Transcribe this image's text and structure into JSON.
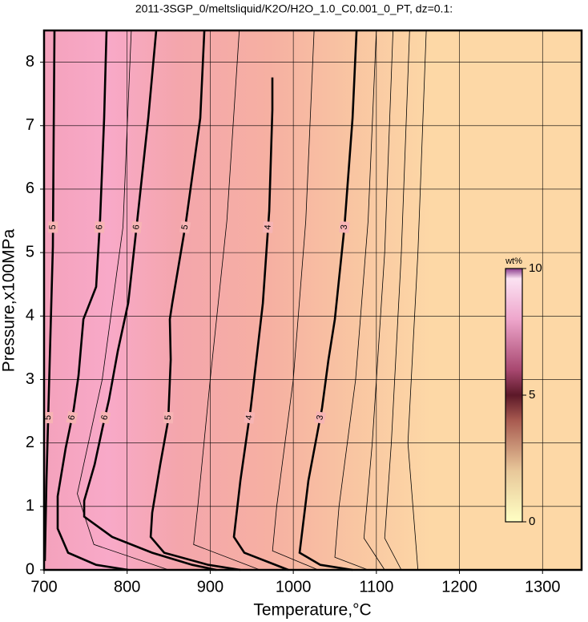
{
  "chart_data": {
    "type": "contour",
    "title": "2011-3SGP_0/meltsliquid/K2O/H2O_1.0_C0.001_0_PT, dz=0.1:",
    "x_label": "Temperature,°C",
    "y_label": "Pressure,x100MPa",
    "xlim": [
      700,
      1347
    ],
    "ylim": [
      0,
      8.5
    ],
    "xticks": [
      700,
      800,
      900,
      1000,
      1100,
      1200,
      1300
    ],
    "yticks": [
      0,
      1,
      2,
      3,
      4,
      5,
      6,
      7,
      8
    ],
    "grid": true,
    "line_color": "#000000",
    "contours": [
      {
        "level": 6,
        "labeled": true,
        "x": [
          775.2,
          772.3,
          767.5,
          762.7,
          747.3,
          741.5,
          735.7,
          726.0,
          716.4,
          716.4,
          728.9,
          762.7,
          801.3
        ],
        "y": [
          8.5,
          7.12,
          5.54,
          4.46,
          3.95,
          3.06,
          2.53,
          1.92,
          1.16,
          0.65,
          0.27,
          0.08,
          0
        ]
      },
      {
        "level": 6,
        "labeled": true,
        "x": [
          835.0,
          825.4,
          810.9,
          801.3,
          788.8,
          778.1,
          770.4,
          760.8,
          748.3,
          748.3,
          782.0,
          830.2,
          878.4,
          907.3
        ],
        "y": [
          8.5,
          7.12,
          5.35,
          4.21,
          3.45,
          2.68,
          2.24,
          1.66,
          1.09,
          0.84,
          0.52,
          0.27,
          0.08,
          0
        ]
      },
      {
        "level": 5,
        "labeled": true,
        "x": [
          892.9,
          888.0,
          870.7,
          854.3,
          851.4,
          852.4,
          849.5,
          839.8,
          830.2,
          828.3,
          844.6,
          897.7,
          936.3
        ],
        "y": [
          8.5,
          7.12,
          5.47,
          4.2,
          3.95,
          3.31,
          2.36,
          1.66,
          0.9,
          0.52,
          0.27,
          0.08,
          0
        ]
      },
      {
        "level": 4,
        "labeled": true,
        "x": [
          974.8,
          974.8,
          971.0,
          963.3,
          955.5,
          948.8,
          936.3,
          928.5,
          941.1,
          994.1
        ],
        "y": [
          7.76,
          7.25,
          5.66,
          4.2,
          3.31,
          2.55,
          1.41,
          0.52,
          0.27,
          0
        ]
      },
      {
        "level": 3,
        "labeled": true,
        "x": [
          1076.1,
          1071.3,
          1061.6,
          1050.0,
          1042.3,
          1034.6,
          1018.2,
          1007.6,
          1032.6,
          1071.3
        ],
        "y": [
          8.5,
          7.12,
          5.41,
          3.95,
          3.31,
          2.55,
          1.41,
          0.27,
          0.08,
          0
        ]
      },
      {
        "level": 5,
        "labeled": true,
        "x": [
          712.5,
          711.6,
          710.6,
          706.8,
          702.9,
          701.0
        ],
        "y": [
          8.5,
          6.87,
          5.09,
          3.31,
          1.41,
          0.14
        ]
      },
      {
        "level": 5.5,
        "labeled": false,
        "x": [
          805,
          795,
          770,
          740,
          760,
          850
        ],
        "y": [
          8.5,
          5.4,
          3,
          1.2,
          0.4,
          0
        ]
      },
      {
        "level": 4.5,
        "labeled": false,
        "x": [
          935,
          920,
          900,
          885,
          880,
          960
        ],
        "y": [
          8.5,
          5.5,
          3,
          1,
          0.4,
          0
        ]
      },
      {
        "level": 3.5,
        "labeled": false,
        "x": [
          1025,
          1015,
          1000,
          980,
          975,
          1030
        ],
        "y": [
          8.5,
          5.5,
          3,
          1,
          0.3,
          0
        ]
      },
      {
        "level": 2.5,
        "labeled": false,
        "x": [
          1100,
          1090,
          1075,
          1055,
          1050,
          1090
        ],
        "y": [
          8.5,
          5.5,
          3,
          1,
          0.2,
          0
        ]
      },
      {
        "level": 2,
        "labeled": false,
        "x": [
          1120,
          1110,
          1095,
          1085,
          1110
        ],
        "y": [
          8.5,
          5,
          2,
          0.5,
          0
        ]
      },
      {
        "level": 1.5,
        "labeled": false,
        "x": [
          1140,
          1130,
          1118,
          1110,
          1130
        ],
        "y": [
          8.5,
          5,
          2,
          0.5,
          0
        ]
      },
      {
        "level": 1,
        "labeled": false,
        "x": [
          1160,
          1150,
          1138,
          1150
        ],
        "y": [
          8.5,
          5,
          2,
          0
        ]
      }
    ],
    "colorbar": {
      "label": "wt%",
      "lim": [
        0,
        10
      ],
      "ticks": [
        0,
        5,
        10
      ],
      "colormap": [
        {
          "value": 0,
          "color": "#ffffc4"
        },
        {
          "value": 2,
          "color": "#e8c89a"
        },
        {
          "value": 4,
          "color": "#a85a50"
        },
        {
          "value": 5,
          "color": "#5c1828"
        },
        {
          "value": 6,
          "color": "#a84870"
        },
        {
          "value": 8,
          "color": "#eea6cc"
        },
        {
          "value": 9.6,
          "color": "#fbe2f2"
        },
        {
          "value": 10,
          "color": "#8a3a8c"
        }
      ]
    }
  }
}
